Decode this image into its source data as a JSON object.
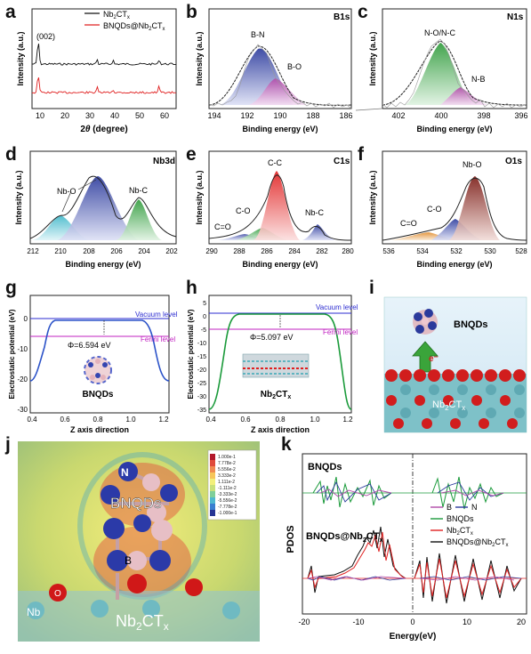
{
  "figure": {
    "panel_letters": [
      "a",
      "b",
      "c",
      "d",
      "e",
      "f",
      "g",
      "h",
      "i",
      "j",
      "k"
    ]
  },
  "colors": {
    "black": "#111111",
    "red": "#e02020",
    "blue_fill": "#2b3a9c",
    "purple_fill": "#b04aa8",
    "green_fill": "#2e9a3a",
    "cyan_fill": "#3fb7c9",
    "vac_line": "#2b2bd0",
    "fermi_line": "#c020c0",
    "g_curve": "#2b52c8",
    "h_curve": "#1a9a3a"
  },
  "panels": {
    "a": {
      "ylabel": "Intensity (a.u.)",
      "xlabel": "2θ (degree)",
      "xlabel_theta": "θ",
      "xlabel_2": "2",
      "xlabel_rest": " (degree)",
      "ticks": [
        "10",
        "20",
        "30",
        "40",
        "50",
        "60"
      ],
      "peak_label": "(002)",
      "legend": [
        {
          "text": "Nb",
          "sub": "2",
          "rest": "CT",
          "sub2": "x",
          "color": "#111111"
        },
        {
          "text": "BNQDs@Nb",
          "sub": "2",
          "rest": "CT",
          "sub2": "x",
          "color": "#e02020"
        }
      ]
    },
    "b": {
      "title": "B1s",
      "ylabel": "Intensity (a.u.)",
      "xlabel": "Binding energy (eV)",
      "ticks": [
        "194",
        "192",
        "190",
        "188",
        "186"
      ],
      "peak_labels": [
        "B-N",
        "B-O"
      ]
    },
    "c": {
      "title": "N1s",
      "ylabel": "Intensity (a.u.)",
      "xlabel": "Binding energy (eV)",
      "ticks": [
        "402",
        "400",
        "398",
        "396"
      ],
      "peak_labels": [
        "N-O/N-C",
        "N-B"
      ]
    },
    "d": {
      "title": "Nb3d",
      "ylabel": "Intensity (a.u.)",
      "xlabel": "Binding energy (eV)",
      "ticks": [
        "212",
        "210",
        "208",
        "206",
        "204",
        "202"
      ],
      "peak_labels": [
        "Nb-O",
        "Nb-C"
      ]
    },
    "e": {
      "title": "C1s",
      "ylabel": "Intensity (a.u.)",
      "xlabel": "Binding energy (eV)",
      "ticks": [
        "290",
        "288",
        "286",
        "284",
        "282",
        "280"
      ],
      "peak_labels": [
        "C-C",
        "C-O",
        "C=O",
        "Nb-C"
      ]
    },
    "f": {
      "title": "O1s",
      "ylabel": "Intensity (a.u.)",
      "xlabel": "Binding energy (eV)",
      "ticks": [
        "536",
        "534",
        "532",
        "530",
        "528"
      ],
      "peak_labels": [
        "Nb-O",
        "C-O",
        "C=O"
      ]
    },
    "g": {
      "ylabel": "Electrostatic potential (eV)",
      "xlabel": "Z axis direction",
      "yticks": [
        "0",
        "-10",
        "-20",
        "-30"
      ],
      "xticks": [
        "0.4",
        "0.6",
        "0.8",
        "1.0",
        "1.2"
      ],
      "vacuum": "Vacuum level",
      "fermi": "Fermi level",
      "phi": "Φ=6.594 eV",
      "mol": "BNQDs"
    },
    "h": {
      "ylabel": "Electrostatic potential (eV)",
      "xlabel": "Z axis direction",
      "yticks": [
        "5",
        "0",
        "-5",
        "-10",
        "-15",
        "-20",
        "-25",
        "-30",
        "-35"
      ],
      "xticks": [
        "0.4",
        "0.6",
        "0.8",
        "1.0",
        "1.2"
      ],
      "vacuum": "Vacuum level",
      "fermi": "Fermi level",
      "phi": "Φ=5.097 eV",
      "mol": "Nb",
      "mol_sub": "2",
      "mol_rest": "CT",
      "mol_sub2": "x"
    },
    "i": {
      "top": "BNQDs",
      "electron": "e⁻",
      "bottom": "Nb",
      "bottom_sub": "2",
      "bottom_rest": "CT",
      "bottom_sub2": "x"
    },
    "j": {
      "labels": {
        "n": "N",
        "bnqds": "BNQDs",
        "b": "B",
        "o": "O",
        "nb": "Nb",
        "nb2": "Nb",
        "nb2_sub": "2",
        "nb2_rest": "CT",
        "nb2_sub2": "x"
      },
      "scale": [
        "1.000e-1",
        "7.778e-2",
        "5.556e-2",
        "3.333e-2",
        "1.111e-2",
        "-1.111e-2",
        "-3.333e-2",
        "-5.556e-2",
        "-7.778e-2",
        "-1.000e-1"
      ]
    },
    "k": {
      "ylabel": "PDOS",
      "xlabel": "Energy(eV)",
      "xticks": [
        "-20",
        "-10",
        "0",
        "10",
        "20"
      ],
      "top_label": "BNQDs",
      "bottom_label": "BNQDs@Nb",
      "bottom_sub": "2",
      "bottom_rest": "CT",
      "bottom_sub2": "x",
      "legend": [
        {
          "text": "B",
          "color": "#b04aa8"
        },
        {
          "text": "N",
          "color": "#2b3a9c"
        },
        {
          "text": "BNQDs",
          "color": "#1a9a3a"
        },
        {
          "text": "Nb",
          "sub": "2",
          "rest": "CT",
          "sub2": "x",
          "color": "#e02020"
        },
        {
          "text": "BNQDs@Nb",
          "sub": "2",
          "rest": "CT",
          "sub2": "x",
          "color": "#111111"
        }
      ]
    }
  }
}
